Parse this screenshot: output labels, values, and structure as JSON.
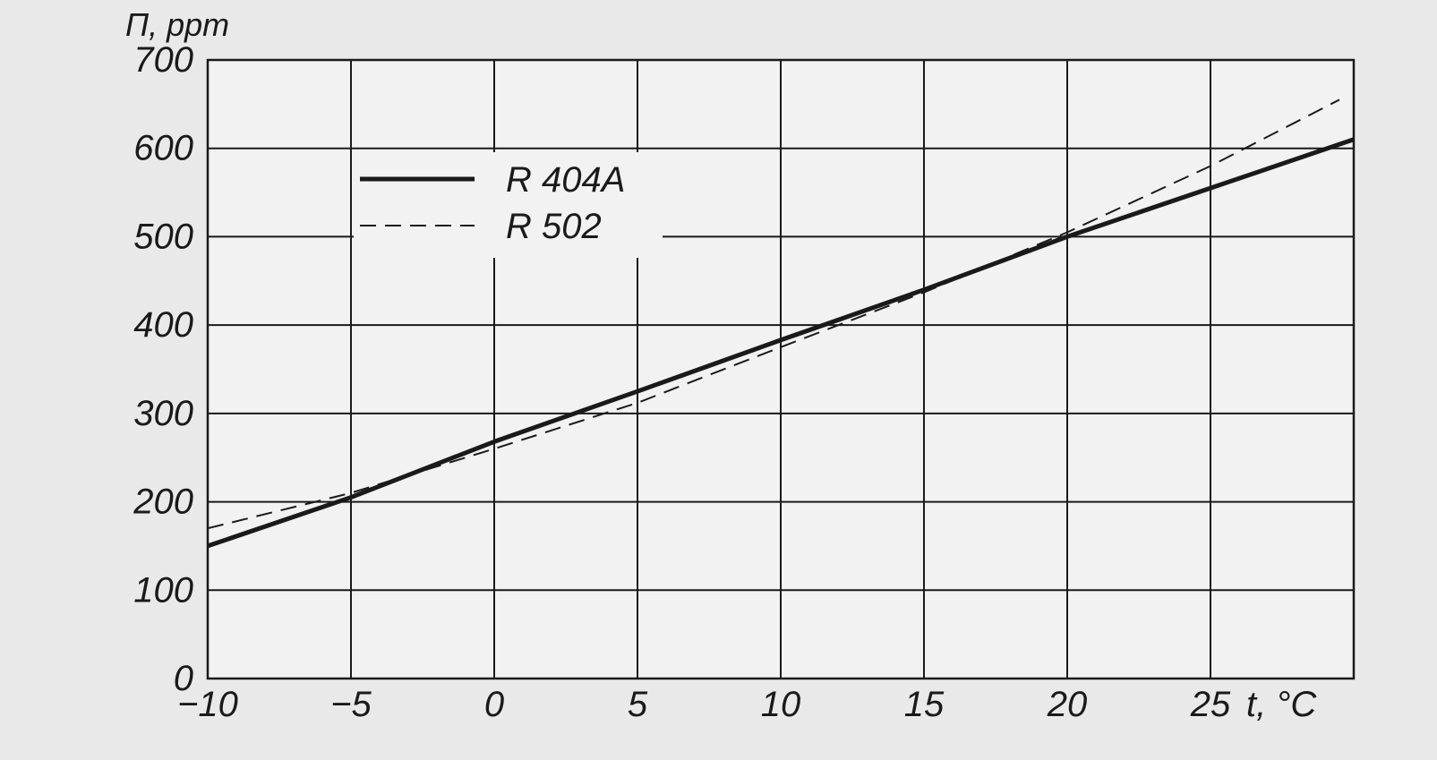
{
  "chart_data": {
    "type": "line",
    "ylabel": "П, ppm",
    "xlabel": "t, °C",
    "xlim": [
      -10,
      30
    ],
    "ylim": [
      0,
      700
    ],
    "x_ticks": [
      -10,
      -5,
      0,
      5,
      10,
      15,
      20,
      25
    ],
    "y_ticks": [
      0,
      100,
      200,
      300,
      400,
      500,
      600,
      700
    ],
    "grid": true,
    "legend_position": "top-left",
    "series": [
      {
        "name": "R 404A",
        "style": "solid",
        "color": "#1a1a1a",
        "x": [
          -10,
          -5,
          0,
          5,
          10,
          15,
          20,
          25,
          30
        ],
        "y": [
          150,
          205,
          268,
          325,
          383,
          440,
          500,
          555,
          610
        ]
      },
      {
        "name": "R 502",
        "style": "dashed",
        "color": "#1a1a1a",
        "x": [
          -10,
          -5,
          0,
          5,
          10,
          15,
          20,
          25,
          29.5
        ],
        "y": [
          170,
          210,
          260,
          312,
          375,
          437,
          505,
          580,
          655
        ]
      }
    ]
  }
}
